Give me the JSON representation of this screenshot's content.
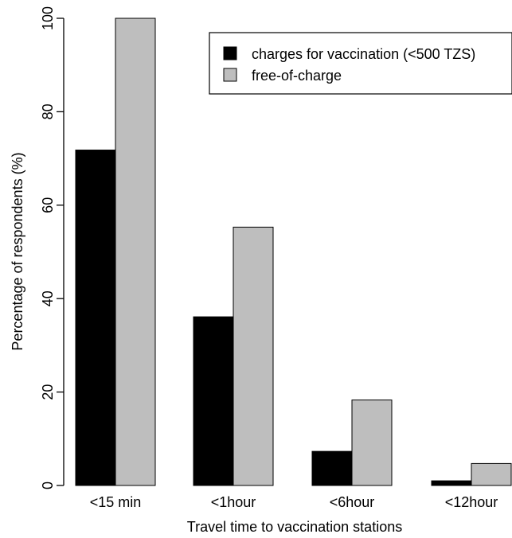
{
  "chart_data": {
    "type": "bar",
    "title": "",
    "xlabel": "Travel time to vaccination stations",
    "ylabel": "Percentage of respondents (%)",
    "ylim": [
      0,
      100
    ],
    "yticks": [
      "0",
      "20",
      "40",
      "60",
      "80",
      "100"
    ],
    "ytick_values": [
      0,
      20,
      40,
      60,
      80,
      100
    ],
    "categories": [
      "<15 min",
      "<1hour",
      "<6hour",
      "<12hour"
    ],
    "series": [
      {
        "name": "charges for vaccination (<500 TZS)",
        "color": "#000000",
        "values": [
          71.8,
          36.1,
          7.3,
          1.0
        ]
      },
      {
        "name": "free-of-charge",
        "color": "#bebebe",
        "values": [
          100,
          55.3,
          18.3,
          4.7
        ]
      }
    ],
    "legend_position": "top-right",
    "grid": false
  }
}
